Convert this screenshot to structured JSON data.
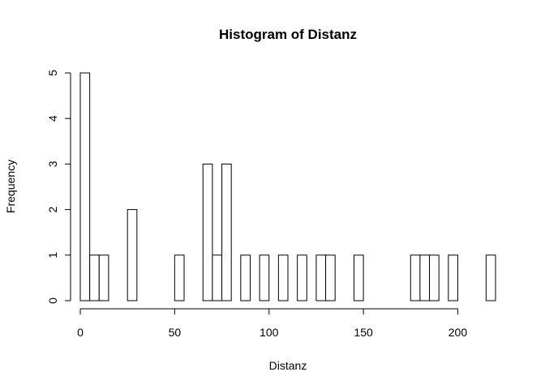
{
  "chart_data": {
    "type": "bar",
    "title": "Histogram of Distanz",
    "xlabel": "Distanz",
    "ylabel": "Frequency",
    "bin_width": 5,
    "bins_start": [
      0,
      5,
      10,
      15,
      20,
      25,
      30,
      35,
      40,
      45,
      50,
      55,
      60,
      65,
      70,
      75,
      80,
      85,
      90,
      95,
      100,
      105,
      110,
      115,
      120,
      125,
      130,
      135,
      140,
      145,
      150,
      155,
      160,
      165,
      170,
      175,
      180,
      185,
      190,
      195,
      200,
      205,
      210,
      215
    ],
    "values": [
      5,
      1,
      1,
      0,
      0,
      2,
      0,
      0,
      0,
      0,
      1,
      0,
      0,
      3,
      1,
      3,
      0,
      1,
      0,
      1,
      0,
      1,
      0,
      1,
      0,
      1,
      1,
      0,
      0,
      1,
      0,
      0,
      0,
      0,
      0,
      1,
      1,
      1,
      0,
      1,
      0,
      0,
      0,
      1
    ],
    "xlim": [
      0,
      220
    ],
    "ylim": [
      0,
      5
    ],
    "x_ticks": [
      0,
      50,
      100,
      150,
      200
    ],
    "y_ticks": [
      0,
      1,
      2,
      3,
      4,
      5
    ],
    "grid": false
  }
}
